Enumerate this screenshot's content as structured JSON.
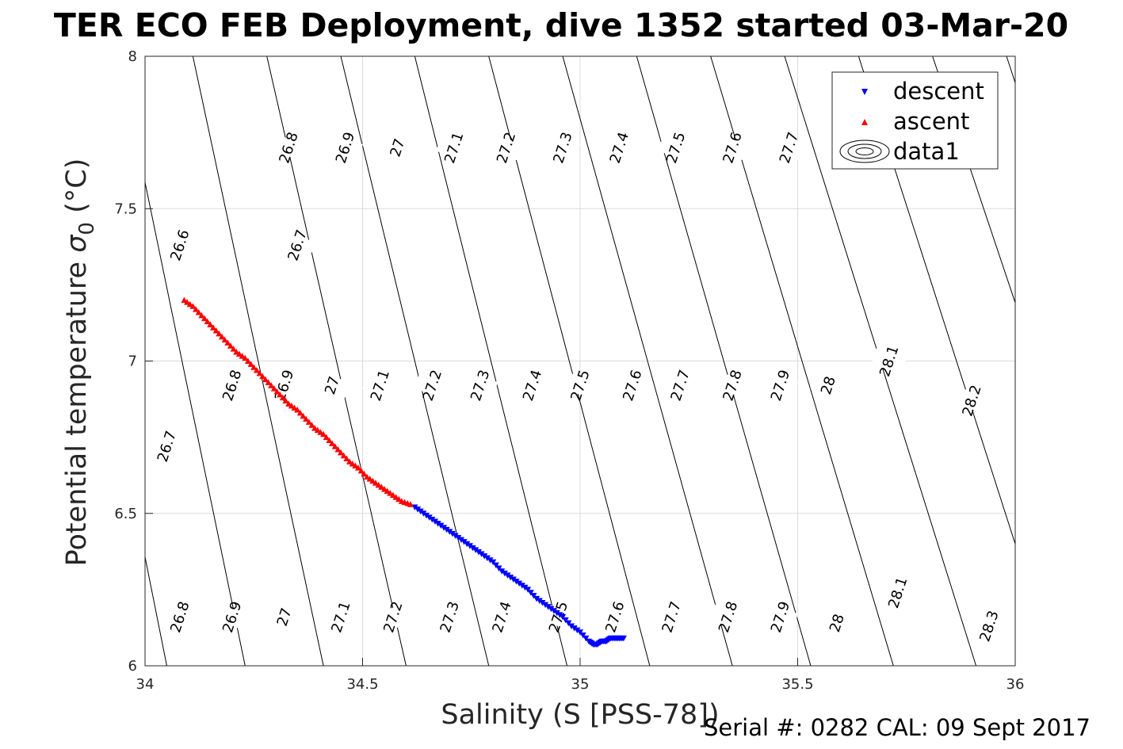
{
  "chart_data": {
    "type": "scatter",
    "title": "TER ECO FEB Deployment, dive 1352 started 03-Mar-20",
    "xlabel": "Salinity (S [PSS-78])",
    "ylabel": "Potential temperature",
    "ylabel_symbol": "σ",
    "ylabel_subscript": "0",
    "ylabel_unit": "(°C)",
    "xlim": [
      34,
      36
    ],
    "ylim": [
      6,
      8
    ],
    "xticks": [
      34,
      34.5,
      35,
      35.5,
      36
    ],
    "xtick_labels": [
      "34",
      "34.5",
      "35",
      "35.5",
      "36"
    ],
    "yticks": [
      6,
      6.5,
      7,
      7.5,
      8
    ],
    "ytick_labels": [
      "6",
      "6.5",
      "7",
      "7.5",
      "8"
    ],
    "grid": true,
    "legend_position": "top-right",
    "series": [
      {
        "name": "descent",
        "marker": "triangle-down",
        "color": "#0000ff",
        "x": [
          34.62,
          34.64,
          34.66,
          34.68,
          34.7,
          34.72,
          34.74,
          34.76,
          34.78,
          34.8,
          34.82,
          34.84,
          34.86,
          34.88,
          34.9,
          34.92,
          34.94,
          34.96,
          34.98,
          35.0,
          35.02,
          35.03,
          35.04,
          35.05,
          35.06,
          35.07,
          35.08,
          35.09,
          35.1
        ],
        "y": [
          6.52,
          6.5,
          6.48,
          6.46,
          6.44,
          6.42,
          6.4,
          6.38,
          6.36,
          6.34,
          6.31,
          6.29,
          6.27,
          6.25,
          6.22,
          6.2,
          6.18,
          6.16,
          6.13,
          6.11,
          6.08,
          6.07,
          6.07,
          6.08,
          6.08,
          6.09,
          6.09,
          6.09,
          6.09
        ]
      },
      {
        "name": "ascent",
        "marker": "triangle-up",
        "color": "#ff0000",
        "x": [
          34.09,
          34.11,
          34.13,
          34.15,
          34.17,
          34.19,
          34.21,
          34.23,
          34.25,
          34.27,
          34.29,
          34.31,
          34.33,
          34.35,
          34.37,
          34.39,
          34.41,
          34.43,
          34.45,
          34.47,
          34.49,
          34.51,
          34.53,
          34.55,
          34.57,
          34.59,
          34.61
        ],
        "y": [
          7.2,
          7.18,
          7.15,
          7.12,
          7.09,
          7.06,
          7.03,
          7.01,
          6.98,
          6.95,
          6.92,
          6.89,
          6.86,
          6.84,
          6.81,
          6.78,
          6.76,
          6.73,
          6.7,
          6.67,
          6.65,
          6.62,
          6.6,
          6.58,
          6.56,
          6.54,
          6.53
        ]
      },
      {
        "name": "data1",
        "marker": "contour",
        "color": "#000000",
        "description_levels": "sigma0 density contours",
        "line_bottom_x": [
          34.05,
          34.23,
          34.41,
          34.6,
          34.79,
          34.97,
          35.16,
          35.35,
          35.53,
          35.72,
          35.91,
          36.09,
          36.28
        ],
        "line_top_x": [
          33.77,
          33.94,
          34.11,
          34.28,
          34.45,
          34.62,
          34.79,
          34.96,
          35.13,
          35.3,
          35.47,
          35.64,
          35.81,
          35.98
        ],
        "line_top_levels": [
          "26.6",
          "26.7",
          "26.8",
          "26.9",
          "27",
          "27.1",
          "27.2",
          "27.3",
          "27.4",
          "27.5",
          "27.6",
          "27.7",
          "27.8",
          "27.9"
        ]
      }
    ],
    "contour_labels": [
      {
        "text": "26.6",
        "s": 34.08,
        "t": 7.38
      },
      {
        "text": "26.7",
        "s": 34.35,
        "t": 7.38
      },
      {
        "text": "26.8",
        "s": 34.33,
        "t": 7.7
      },
      {
        "text": "26.9",
        "s": 34.46,
        "t": 7.7
      },
      {
        "text": "27",
        "s": 34.58,
        "t": 7.7
      },
      {
        "text": "27.1",
        "s": 34.71,
        "t": 7.7
      },
      {
        "text": "27.2",
        "s": 34.83,
        "t": 7.7
      },
      {
        "text": "27.3",
        "s": 34.96,
        "t": 7.7
      },
      {
        "text": "27.4",
        "s": 35.09,
        "t": 7.7
      },
      {
        "text": "27.5",
        "s": 35.22,
        "t": 7.7
      },
      {
        "text": "27.6",
        "s": 35.35,
        "t": 7.7
      },
      {
        "text": "27.7",
        "s": 35.48,
        "t": 7.7
      },
      {
        "text": "26.7",
        "s": 34.05,
        "t": 6.72
      },
      {
        "text": "26.8",
        "s": 34.2,
        "t": 6.92
      },
      {
        "text": "26.9",
        "s": 34.32,
        "t": 6.92
      },
      {
        "text": "27",
        "s": 34.43,
        "t": 6.92
      },
      {
        "text": "27.1",
        "s": 34.54,
        "t": 6.92
      },
      {
        "text": "27.2",
        "s": 34.66,
        "t": 6.92
      },
      {
        "text": "27.3",
        "s": 34.77,
        "t": 6.92
      },
      {
        "text": "27.4",
        "s": 34.89,
        "t": 6.92
      },
      {
        "text": "27.5",
        "s": 35.0,
        "t": 6.92
      },
      {
        "text": "27.6",
        "s": 35.12,
        "t": 6.92
      },
      {
        "text": "27.7",
        "s": 35.23,
        "t": 6.92
      },
      {
        "text": "27.8",
        "s": 35.35,
        "t": 6.92
      },
      {
        "text": "27.9",
        "s": 35.46,
        "t": 6.92
      },
      {
        "text": "28",
        "s": 35.57,
        "t": 6.92
      },
      {
        "text": "28.1",
        "s": 35.71,
        "t": 7.0
      },
      {
        "text": "28.2",
        "s": 35.9,
        "t": 6.87
      },
      {
        "text": "26.8",
        "s": 34.08,
        "t": 6.16
      },
      {
        "text": "26.9",
        "s": 34.2,
        "t": 6.16
      },
      {
        "text": "27",
        "s": 34.32,
        "t": 6.16
      },
      {
        "text": "27.1",
        "s": 34.45,
        "t": 6.16
      },
      {
        "text": "27.2",
        "s": 34.57,
        "t": 6.16
      },
      {
        "text": "27.3",
        "s": 34.7,
        "t": 6.16
      },
      {
        "text": "27.4",
        "s": 34.82,
        "t": 6.16
      },
      {
        "text": "27.5",
        "s": 34.95,
        "t": 6.16
      },
      {
        "text": "27.6",
        "s": 35.08,
        "t": 6.16
      },
      {
        "text": "27.7",
        "s": 35.21,
        "t": 6.16
      },
      {
        "text": "27.8",
        "s": 35.34,
        "t": 6.16
      },
      {
        "text": "27.9",
        "s": 35.46,
        "t": 6.16
      },
      {
        "text": "28",
        "s": 35.59,
        "t": 6.14
      },
      {
        "text": "28.1",
        "s": 35.73,
        "t": 6.24
      },
      {
        "text": "28.3",
        "s": 35.94,
        "t": 6.13
      }
    ]
  },
  "footer": {
    "serial_text": "Serial #: 0282  CAL: 09 Sept 2017"
  }
}
